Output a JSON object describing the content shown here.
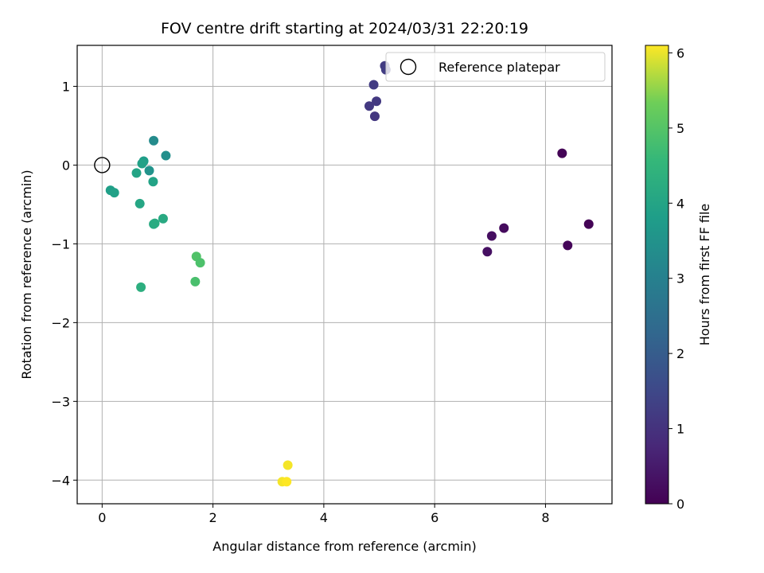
{
  "chart_data": {
    "type": "scatter",
    "title": "FOV centre drift starting at 2024/03/31 22:20:19",
    "xlabel": "Angular distance from reference (arcmin)",
    "ylabel": "Rotation from reference (arcmin)",
    "xlim": [
      -0.45,
      9.2
    ],
    "ylim": [
      -4.3,
      1.52
    ],
    "xticks": [
      0,
      2,
      4,
      6,
      8
    ],
    "yticks": [
      1,
      0,
      -1,
      -2,
      -3,
      -4
    ],
    "xtick_labels": [
      "0",
      "2",
      "4",
      "6",
      "8"
    ],
    "ytick_labels": [
      "1",
      "0",
      "−1",
      "−2",
      "−3",
      "−4"
    ],
    "grid": true,
    "legend": {
      "position": "top-right",
      "entries": [
        "Reference platepar"
      ]
    },
    "reference_point": {
      "x": 0,
      "y": 0
    },
    "colorbar": {
      "label": "Hours from first FF file",
      "colormap": "viridis",
      "range": [
        0,
        6.1
      ],
      "ticks": [
        0,
        1,
        2,
        3,
        4,
        5,
        6
      ],
      "tick_labels": [
        "0",
        "1",
        "2",
        "3",
        "4",
        "5",
        "6"
      ]
    },
    "points": [
      {
        "x": 8.3,
        "y": 0.15,
        "c": 0.05
      },
      {
        "x": 8.78,
        "y": -0.75,
        "c": 0.05
      },
      {
        "x": 8.4,
        "y": -1.02,
        "c": 0.1
      },
      {
        "x": 7.25,
        "y": -0.8,
        "c": 0.2
      },
      {
        "x": 7.03,
        "y": -0.9,
        "c": 0.25
      },
      {
        "x": 6.95,
        "y": -1.1,
        "c": 0.3
      },
      {
        "x": 4.92,
        "y": 0.62,
        "c": 1.1
      },
      {
        "x": 4.82,
        "y": 0.75,
        "c": 1.15
      },
      {
        "x": 4.95,
        "y": 0.81,
        "c": 1.15
      },
      {
        "x": 4.9,
        "y": 1.02,
        "c": 1.2
      },
      {
        "x": 5.1,
        "y": 1.26,
        "c": 1.2
      },
      {
        "x": 5.12,
        "y": 1.21,
        "c": 1.25
      },
      {
        "x": 0.93,
        "y": 0.31,
        "c": 3.3
      },
      {
        "x": 1.15,
        "y": 0.12,
        "c": 3.4
      },
      {
        "x": 0.85,
        "y": -0.07,
        "c": 3.5
      },
      {
        "x": 0.75,
        "y": 0.05,
        "c": 3.8
      },
      {
        "x": 0.72,
        "y": 0.02,
        "c": 3.9
      },
      {
        "x": 0.62,
        "y": -0.1,
        "c": 4.0
      },
      {
        "x": 0.92,
        "y": -0.21,
        "c": 3.95
      },
      {
        "x": 0.15,
        "y": -0.32,
        "c": 3.85
      },
      {
        "x": 0.22,
        "y": -0.35,
        "c": 3.9
      },
      {
        "x": 0.68,
        "y": -0.49,
        "c": 4.05
      },
      {
        "x": 1.1,
        "y": -0.68,
        "c": 4.15
      },
      {
        "x": 0.93,
        "y": -0.75,
        "c": 4.15
      },
      {
        "x": 0.95,
        "y": -0.74,
        "c": 4.2
      },
      {
        "x": 0.7,
        "y": -1.55,
        "c": 4.3
      },
      {
        "x": 1.7,
        "y": -1.16,
        "c": 4.95
      },
      {
        "x": 1.77,
        "y": -1.24,
        "c": 4.9
      },
      {
        "x": 1.68,
        "y": -1.48,
        "c": 4.85
      },
      {
        "x": 3.35,
        "y": -3.81,
        "c": 6.05
      },
      {
        "x": 3.25,
        "y": -4.02,
        "c": 6.05
      },
      {
        "x": 3.33,
        "y": -4.02,
        "c": 6.1
      }
    ]
  }
}
